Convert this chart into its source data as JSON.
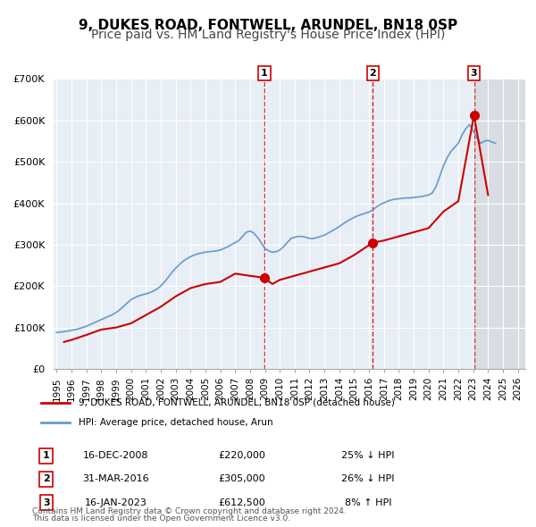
{
  "title": "9, DUKES ROAD, FONTWELL, ARUNDEL, BN18 0SP",
  "subtitle": "Price paid vs. HM Land Registry's House Price Index (HPI)",
  "xlabel": "",
  "ylabel": "",
  "ylim": [
    0,
    700000
  ],
  "yticks": [
    0,
    100000,
    200000,
    300000,
    400000,
    500000,
    600000,
    700000
  ],
  "ytick_labels": [
    "£0",
    "£100K",
    "£200K",
    "£300K",
    "£400K",
    "£500K",
    "£600K",
    "£700K"
  ],
  "xlim_start": 1995.0,
  "xlim_end": 2026.5,
  "xticks": [
    1995,
    1996,
    1997,
    1998,
    1999,
    2000,
    2001,
    2002,
    2003,
    2004,
    2005,
    2006,
    2007,
    2008,
    2009,
    2010,
    2011,
    2012,
    2013,
    2014,
    2015,
    2016,
    2017,
    2018,
    2019,
    2020,
    2021,
    2022,
    2023,
    2024,
    2025,
    2026
  ],
  "hpi_color": "#6699cc",
  "price_color": "#cc0000",
  "marker_color": "#cc0000",
  "vline_color": "#cc0000",
  "background_fill": "#e8eef5",
  "transactions": [
    {
      "num": 1,
      "date_x": 2008.96,
      "price": 220000,
      "label": "1",
      "pct": "25%",
      "dir": "↓",
      "date_str": "16-DEC-2008",
      "price_str": "£220,000"
    },
    {
      "num": 2,
      "date_x": 2016.25,
      "price": 305000,
      "label": "2",
      "pct": "26%",
      "dir": "↓",
      "date_str": "31-MAR-2016",
      "price_str": "£305,000"
    },
    {
      "num": 3,
      "date_x": 2023.05,
      "price": 612500,
      "label": "3",
      "pct": "8%",
      "dir": "↑",
      "date_str": "16-JAN-2023",
      "price_str": "£612,500"
    }
  ],
  "legend_line1": "9, DUKES ROAD, FONTWELL, ARUNDEL, BN18 0SP (detached house)",
  "legend_line2": "HPI: Average price, detached house, Arun",
  "footnote1": "Contains HM Land Registry data © Crown copyright and database right 2024.",
  "footnote2": "This data is licensed under the Open Government Licence v3.0.",
  "title_fontsize": 11,
  "subtitle_fontsize": 10,
  "hpi_data": {
    "years": [
      1995.0,
      1995.25,
      1995.5,
      1995.75,
      1996.0,
      1996.25,
      1996.5,
      1996.75,
      1997.0,
      1997.25,
      1997.5,
      1997.75,
      1998.0,
      1998.25,
      1998.5,
      1998.75,
      1999.0,
      1999.25,
      1999.5,
      1999.75,
      2000.0,
      2000.25,
      2000.5,
      2000.75,
      2001.0,
      2001.25,
      2001.5,
      2001.75,
      2002.0,
      2002.25,
      2002.5,
      2002.75,
      2003.0,
      2003.25,
      2003.5,
      2003.75,
      2004.0,
      2004.25,
      2004.5,
      2004.75,
      2005.0,
      2005.25,
      2005.5,
      2005.75,
      2006.0,
      2006.25,
      2006.5,
      2006.75,
      2007.0,
      2007.25,
      2007.5,
      2007.75,
      2008.0,
      2008.25,
      2008.5,
      2008.75,
      2009.0,
      2009.25,
      2009.5,
      2009.75,
      2010.0,
      2010.25,
      2010.5,
      2010.75,
      2011.0,
      2011.25,
      2011.5,
      2011.75,
      2012.0,
      2012.25,
      2012.5,
      2012.75,
      2013.0,
      2013.25,
      2013.5,
      2013.75,
      2014.0,
      2014.25,
      2014.5,
      2014.75,
      2015.0,
      2015.25,
      2015.5,
      2015.75,
      2016.0,
      2016.25,
      2016.5,
      2016.75,
      2017.0,
      2017.25,
      2017.5,
      2017.75,
      2018.0,
      2018.25,
      2018.5,
      2018.75,
      2019.0,
      2019.25,
      2019.5,
      2019.75,
      2020.0,
      2020.25,
      2020.5,
      2020.75,
      2021.0,
      2021.25,
      2021.5,
      2021.75,
      2022.0,
      2022.25,
      2022.5,
      2022.75,
      2023.0,
      2023.25,
      2023.5,
      2023.75,
      2024.0,
      2024.25,
      2024.5
    ],
    "values": [
      88000,
      89000,
      90000,
      91500,
      93000,
      95000,
      97000,
      100000,
      103000,
      107000,
      111000,
      115000,
      119000,
      123000,
      127000,
      131000,
      136000,
      143000,
      151000,
      159000,
      167000,
      172000,
      176000,
      179000,
      181000,
      184000,
      188000,
      193000,
      200000,
      210000,
      221000,
      233000,
      243000,
      252000,
      260000,
      266000,
      271000,
      275000,
      278000,
      280000,
      282000,
      283000,
      284000,
      285000,
      287000,
      291000,
      295000,
      300000,
      305000,
      310000,
      320000,
      330000,
      333000,
      328000,
      318000,
      305000,
      291000,
      285000,
      282000,
      283000,
      287000,
      295000,
      305000,
      315000,
      318000,
      320000,
      320000,
      318000,
      315000,
      315000,
      317000,
      320000,
      323000,
      328000,
      333000,
      338000,
      344000,
      350000,
      356000,
      361000,
      366000,
      370000,
      373000,
      376000,
      379000,
      384000,
      391000,
      397000,
      401000,
      405000,
      408000,
      410000,
      411000,
      412000,
      413000,
      413000,
      414000,
      415000,
      416000,
      418000,
      420000,
      425000,
      440000,
      465000,
      490000,
      510000,
      525000,
      535000,
      545000,
      565000,
      580000,
      590000,
      575000,
      558000,
      545000,
      550000,
      552000,
      548000,
      545000
    ]
  },
  "price_data": {
    "years": [
      1995.5,
      1996.0,
      1997.0,
      1998.0,
      1999.0,
      2000.0,
      2001.0,
      2002.0,
      2003.0,
      2004.0,
      2005.0,
      2006.0,
      2007.0,
      2008.96,
      2009.5,
      2010.0,
      2011.0,
      2012.0,
      2013.0,
      2014.0,
      2015.0,
      2016.25,
      2017.0,
      2018.0,
      2019.0,
      2020.0,
      2021.0,
      2022.0,
      2023.05,
      2024.0
    ],
    "values": [
      65000,
      70000,
      82000,
      95000,
      100000,
      110000,
      130000,
      150000,
      175000,
      195000,
      205000,
      210000,
      230000,
      220000,
      205000,
      215000,
      225000,
      235000,
      245000,
      255000,
      275000,
      305000,
      310000,
      320000,
      330000,
      340000,
      380000,
      405000,
      612500,
      420000
    ]
  }
}
